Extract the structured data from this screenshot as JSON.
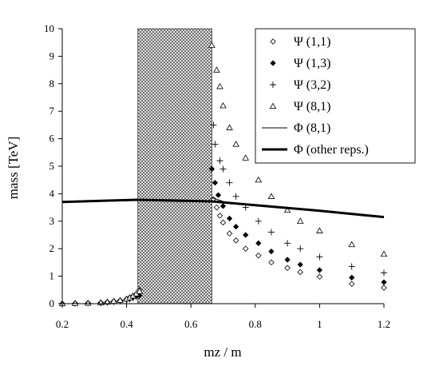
{
  "chart_data": {
    "type": "scatter",
    "title": "",
    "xlabel": "mz / m",
    "ylabel": "mass [TeV]",
    "xlim": [
      0.2,
      1.2
    ],
    "ylim": [
      0,
      10
    ],
    "xticks": [
      "0.2",
      "0.4",
      "0.6",
      "0.8",
      "1",
      "1.2"
    ],
    "yticks": [
      "0",
      "1",
      "2",
      "3",
      "4",
      "5",
      "6",
      "7",
      "8",
      "9",
      "10"
    ],
    "legend_position": "top-right",
    "shaded_region": {
      "x": [
        0.435,
        0.665
      ],
      "pattern": "crosshatch"
    },
    "series": [
      {
        "name": "Ψ (1,1)",
        "marker": "diamond-open",
        "points": [
          [
            0.2,
            0.0
          ],
          [
            0.24,
            0.01
          ],
          [
            0.28,
            0.02
          ],
          [
            0.32,
            0.04
          ],
          [
            0.34,
            0.06
          ],
          [
            0.36,
            0.09
          ],
          [
            0.38,
            0.12
          ],
          [
            0.4,
            0.17
          ],
          [
            0.41,
            0.22
          ],
          [
            0.42,
            0.28
          ],
          [
            0.43,
            0.35
          ],
          [
            0.44,
            0.5
          ],
          [
            0.67,
            3.8
          ],
          [
            0.68,
            3.5
          ],
          [
            0.69,
            3.2
          ],
          [
            0.7,
            2.95
          ],
          [
            0.72,
            2.55
          ],
          [
            0.74,
            2.3
          ],
          [
            0.77,
            2.0
          ],
          [
            0.81,
            1.75
          ],
          [
            0.85,
            1.5
          ],
          [
            0.9,
            1.3
          ],
          [
            0.94,
            1.15
          ],
          [
            1.0,
            0.98
          ],
          [
            1.1,
            0.72
          ],
          [
            1.2,
            0.58
          ]
        ]
      },
      {
        "name": "Ψ (1,3)",
        "marker": "diamond-filled",
        "points": [
          [
            0.2,
            0.0
          ],
          [
            0.24,
            0.01
          ],
          [
            0.28,
            0.02
          ],
          [
            0.32,
            0.03
          ],
          [
            0.34,
            0.05
          ],
          [
            0.36,
            0.07
          ],
          [
            0.38,
            0.1
          ],
          [
            0.4,
            0.14
          ],
          [
            0.41,
            0.18
          ],
          [
            0.42,
            0.22
          ],
          [
            0.43,
            0.27
          ],
          [
            0.44,
            0.3
          ],
          [
            0.665,
            4.9
          ],
          [
            0.675,
            4.4
          ],
          [
            0.685,
            3.95
          ],
          [
            0.7,
            3.55
          ],
          [
            0.72,
            3.1
          ],
          [
            0.74,
            2.8
          ],
          [
            0.77,
            2.5
          ],
          [
            0.81,
            2.2
          ],
          [
            0.85,
            1.9
          ],
          [
            0.9,
            1.6
          ],
          [
            0.94,
            1.42
          ],
          [
            1.0,
            1.22
          ],
          [
            1.1,
            0.95
          ],
          [
            1.2,
            0.78
          ]
        ]
      },
      {
        "name": "Ψ (3,2)",
        "marker": "plus",
        "points": [
          [
            0.2,
            0.0
          ],
          [
            0.24,
            0.01
          ],
          [
            0.28,
            0.02
          ],
          [
            0.32,
            0.03
          ],
          [
            0.34,
            0.05
          ],
          [
            0.36,
            0.07
          ],
          [
            0.38,
            0.1
          ],
          [
            0.4,
            0.13
          ],
          [
            0.41,
            0.17
          ],
          [
            0.42,
            0.21
          ],
          [
            0.43,
            0.25
          ],
          [
            0.44,
            0.28
          ],
          [
            0.67,
            6.5
          ],
          [
            0.675,
            5.8
          ],
          [
            0.69,
            5.2
          ],
          [
            0.7,
            4.9
          ],
          [
            0.72,
            4.4
          ],
          [
            0.74,
            3.9
          ],
          [
            0.77,
            3.5
          ],
          [
            0.81,
            3.0
          ],
          [
            0.85,
            2.6
          ],
          [
            0.9,
            2.2
          ],
          [
            0.94,
            2.0
          ],
          [
            1.0,
            1.7
          ],
          [
            1.1,
            1.35
          ],
          [
            1.2,
            1.12
          ]
        ]
      },
      {
        "name": "Ψ (8,1)",
        "marker": "triangle-open",
        "points": [
          [
            0.2,
            0.0
          ],
          [
            0.24,
            0.01
          ],
          [
            0.28,
            0.02
          ],
          [
            0.32,
            0.04
          ],
          [
            0.34,
            0.06
          ],
          [
            0.36,
            0.09
          ],
          [
            0.38,
            0.12
          ],
          [
            0.4,
            0.17
          ],
          [
            0.41,
            0.22
          ],
          [
            0.42,
            0.28
          ],
          [
            0.43,
            0.36
          ],
          [
            0.44,
            0.45
          ],
          [
            0.665,
            9.4
          ],
          [
            0.68,
            8.5
          ],
          [
            0.69,
            7.9
          ],
          [
            0.7,
            7.2
          ],
          [
            0.72,
            6.4
          ],
          [
            0.74,
            5.8
          ],
          [
            0.77,
            5.3
          ],
          [
            0.81,
            4.5
          ],
          [
            0.85,
            3.9
          ],
          [
            0.9,
            3.4
          ],
          [
            0.94,
            3.0
          ],
          [
            1.0,
            2.65
          ],
          [
            1.1,
            2.15
          ],
          [
            1.2,
            1.8
          ]
        ]
      },
      {
        "name": "Φ (8,1)",
        "line": "thin",
        "points": [
          [
            0.665,
            3.85
          ],
          [
            0.7,
            3.72
          ]
        ]
      },
      {
        "name": "Φ (other reps.)",
        "line": "thick",
        "points": [
          [
            0.2,
            3.7
          ],
          [
            0.435,
            3.78
          ],
          [
            0.665,
            3.72
          ],
          [
            0.8,
            3.58
          ],
          [
            1.0,
            3.38
          ],
          [
            1.2,
            3.15
          ]
        ]
      }
    ]
  }
}
